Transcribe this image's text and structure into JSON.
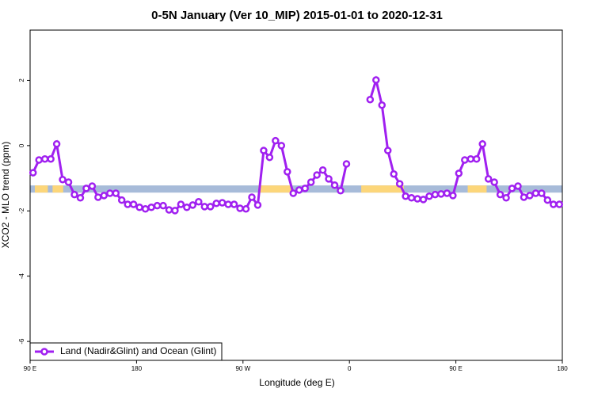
{
  "chart_data": {
    "type": "line",
    "title": "0-5N January (Ver 10_MIP)   2015-01-01 to 2020-12-31",
    "xlabel": "Longitude (deg E)",
    "ylabel": "XCO2 - MLO trend (ppm)",
    "xlim": [
      90,
      540
    ],
    "ylim": [
      -6.58,
      3.54
    ],
    "xticks": [
      {
        "value": 90,
        "label": "90 E"
      },
      180,
      {
        "value": 270,
        "label": "90 W"
      },
      {
        "value": 360,
        "label": "0"
      },
      {
        "value": 450,
        "label": "90 E"
      },
      {
        "value": 540,
        "label": "180"
      }
    ],
    "yticks": [
      2,
      0,
      -2,
      -4,
      -6
    ],
    "legend": "bottom-left",
    "band_range": [
      -1.44,
      -1.22
    ],
    "band_color": "#a7bbd9",
    "land_color": "#fcd67a",
    "land_spans": [
      [
        94,
        105
      ],
      [
        109,
        118
      ],
      [
        283,
        312
      ],
      [
        370,
        406
      ],
      [
        460,
        476
      ]
    ],
    "x": [
      92.5,
      97.5,
      102.5,
      107.5,
      112.5,
      117.5,
      122.5,
      127.5,
      132.5,
      137.5,
      142.5,
      147.5,
      152.5,
      157.5,
      162.5,
      167.5,
      172.5,
      177.5,
      182.5,
      187.5,
      192.5,
      197.5,
      202.5,
      207.5,
      212.5,
      217.5,
      222.5,
      227.5,
      232.5,
      237.5,
      242.5,
      247.5,
      252.5,
      257.5,
      262.5,
      267.5,
      272.5,
      277.5,
      282.5,
      287.5,
      292.5,
      297.5,
      302.5,
      307.5,
      312.5,
      317.5,
      322.5,
      327.5,
      332.5,
      337.5,
      342.5,
      347.5,
      352.5,
      357.5,
      362.5,
      367.5,
      372.5,
      377.5,
      382.5,
      387.5,
      392.5,
      397.5,
      402.5,
      407.5,
      412.5,
      417.5,
      422.5,
      427.5,
      432.5,
      437.5,
      442.5,
      447.5,
      452.5,
      457.5,
      462.5,
      467.5,
      472.5,
      477.5,
      482.5,
      487.5,
      492.5,
      497.5,
      502.5,
      507.5,
      512.5,
      517.5,
      522.5,
      527.5,
      532.5,
      537.5
    ],
    "series": [
      {
        "name": "Land (Nadir&Glint) and Ocean (Glint)",
        "color": "#a020f0",
        "values": [
          -0.83,
          -0.44,
          -0.41,
          -0.41,
          0.05,
          -1.04,
          -1.12,
          -1.5,
          -1.6,
          -1.31,
          -1.24,
          -1.58,
          -1.53,
          -1.46,
          -1.46,
          -1.67,
          -1.8,
          -1.8,
          -1.89,
          -1.94,
          -1.89,
          -1.84,
          -1.84,
          -1.97,
          -1.99,
          -1.8,
          -1.89,
          -1.82,
          -1.72,
          -1.87,
          -1.87,
          -1.77,
          -1.75,
          -1.8,
          -1.8,
          -1.92,
          -1.94,
          -1.58,
          -1.82,
          -0.15,
          -0.36,
          0.15,
          0,
          -0.8,
          -1.46,
          -1.36,
          -1.31,
          -1.12,
          -0.9,
          -0.75,
          -1.02,
          -1.21,
          -1.38,
          -0.56,
          null,
          null,
          null,
          1.41,
          2.01,
          1.24,
          -0.15,
          -0.87,
          -1.17,
          -1.55,
          -1.6,
          -1.63,
          -1.65,
          -1.55,
          -1.5,
          -1.48,
          -1.46,
          -1.53,
          -0.85,
          -0.44,
          -0.41,
          -0.41,
          0.05,
          -1.02,
          -1.12,
          -1.5,
          -1.6,
          -1.31,
          -1.24,
          -1.58,
          -1.53,
          -1.46,
          -1.46,
          -1.67,
          -1.8,
          -1.8
        ]
      }
    ]
  }
}
